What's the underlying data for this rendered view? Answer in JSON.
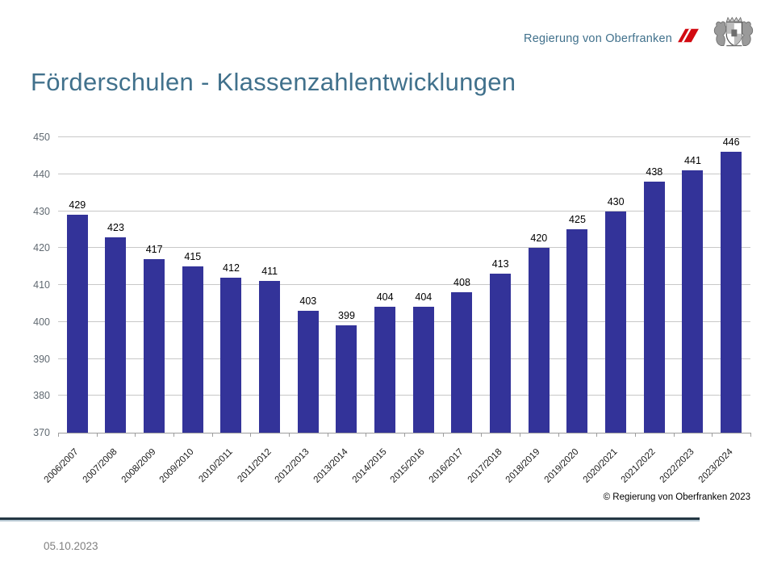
{
  "header": {
    "org_name": "Regierung von Oberfranken"
  },
  "page_title": "Förderschulen - Klassenzahlentwicklungen",
  "chart_data": {
    "type": "bar",
    "title": "Förderschulen - Klassenzahlentwicklungen",
    "categories": [
      "2006/2007",
      "2007/2008",
      "2008/2009",
      "2009/2010",
      "2010/2011",
      "2011/2012",
      "2012/2013",
      "2013/2014",
      "2014/2015",
      "2015/2016",
      "2016/2017",
      "2017/2018",
      "2018/2019",
      "2019/2020",
      "2020/2021",
      "2021/2022",
      "2022/2023",
      "2023/2024"
    ],
    "values": [
      429,
      423,
      417,
      415,
      412,
      411,
      403,
      399,
      404,
      404,
      408,
      413,
      420,
      425,
      430,
      438,
      441,
      446
    ],
    "xlabel": "",
    "ylabel": "",
    "ylim": [
      370,
      450
    ],
    "ytick_step": 10,
    "grid": true,
    "legend_position": "none",
    "bar_color": "#333399",
    "value_labels": true
  },
  "footer": {
    "copyright": "© Regierung von Oberfranken 2023",
    "date": "05.10.2023"
  },
  "colors": {
    "title_text": "#41718C",
    "header_text": "#41718C",
    "gridline": "#C8C8C8",
    "axis": "#9E9E9E",
    "y_tick_label": "#616A72",
    "x_tick_label": "#1A1A1A",
    "value_label": "#000000",
    "copyright_text": "#000000",
    "footer_bar": "#243744",
    "footer_bar_underline": "#B9C9D4",
    "logo_red": "#D20A11",
    "coat_of_arms_gray": "#777777",
    "date_text": "#808080"
  }
}
